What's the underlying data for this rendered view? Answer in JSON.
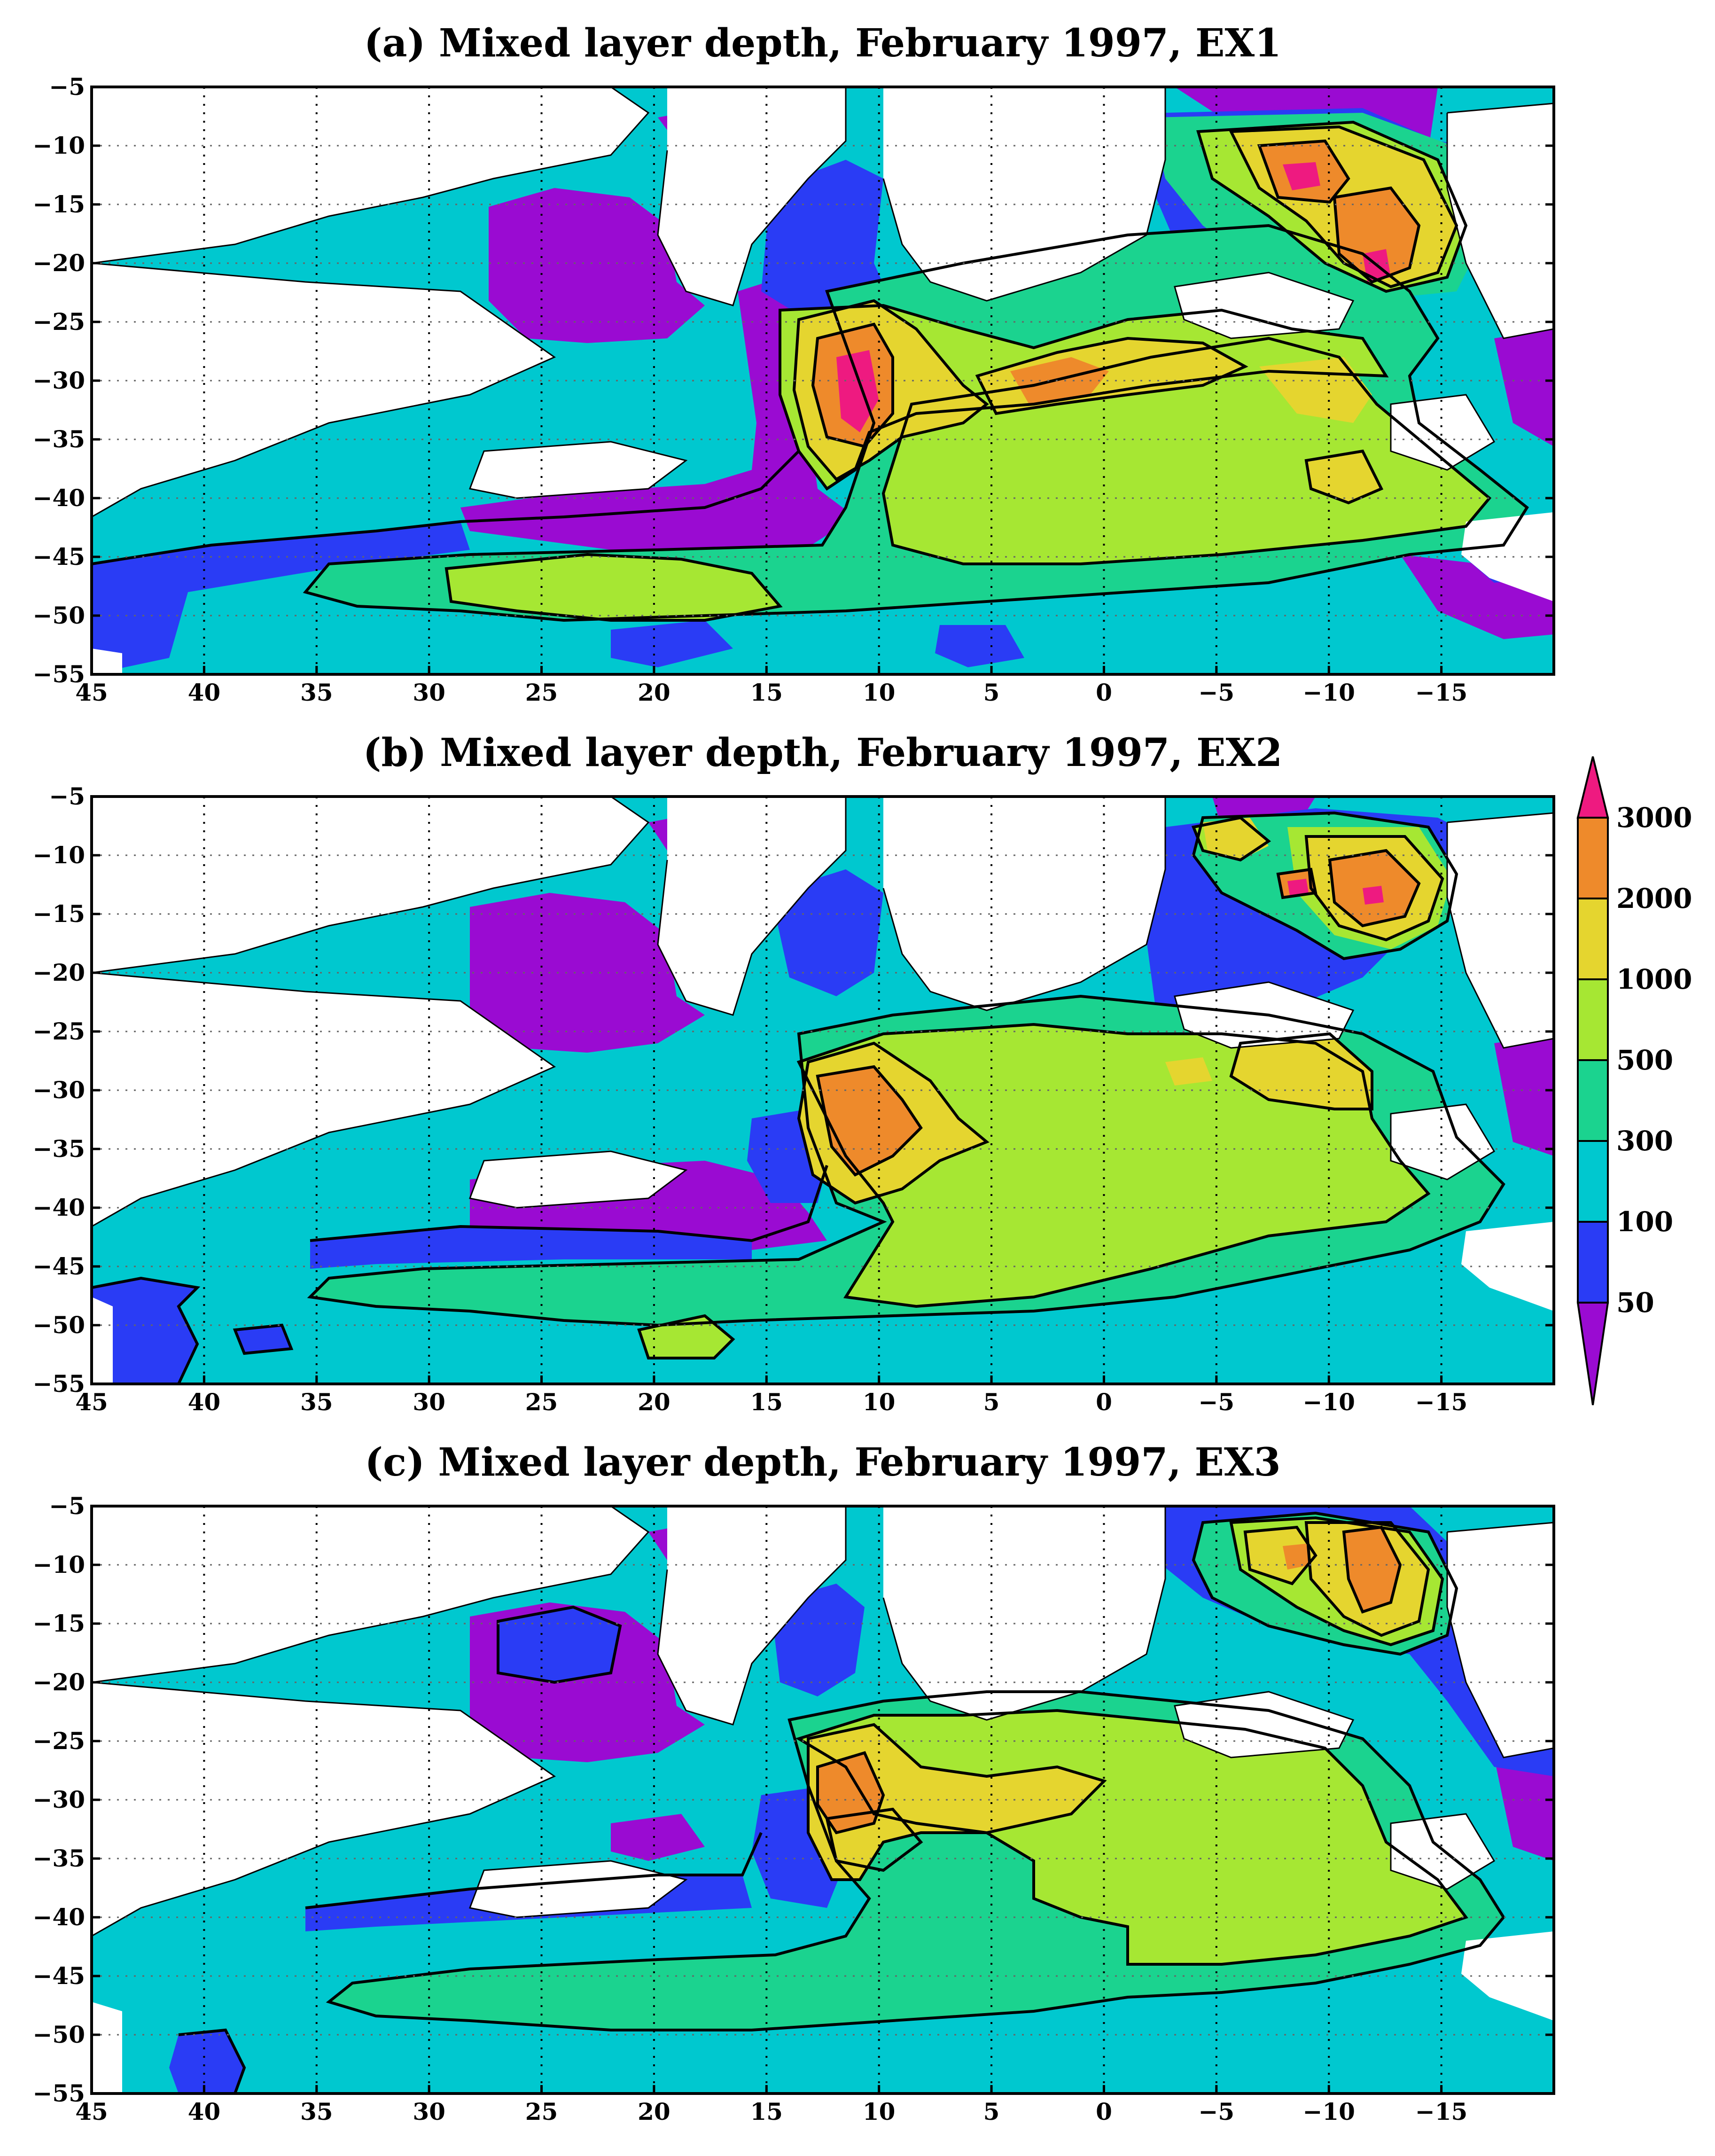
{
  "chart_data": [
    {
      "type": "heatmap",
      "title": "(a) Mixed layer depth, February 1997, EX1",
      "xlabel": "",
      "ylabel": "",
      "xlim": [
        45,
        -20
      ],
      "ylim": [
        -55,
        -5
      ],
      "x_ticks": [
        "45",
        "40",
        "35",
        "30",
        "25",
        "20",
        "15",
        "10",
        "5",
        "0",
        "−5",
        "−10",
        "−15"
      ],
      "y_ticks": [
        "−5",
        "−10",
        "−15",
        "−20",
        "−25",
        "−30",
        "−35",
        "−40",
        "−45",
        "−50",
        "−55"
      ],
      "grid": true,
      "regions": [
        {
          "name": "3000",
          "center": [
            12,
            -31
          ]
        },
        {
          "name": "3000",
          "center": [
            -7,
            -13
          ]
        },
        {
          "name": "3000",
          "center": [
            -11,
            -21
          ]
        },
        {
          "name": "2000",
          "center": [
            12,
            -30
          ]
        },
        {
          "name": "2000",
          "center": [
            -3,
            -30
          ]
        },
        {
          "name": "2000",
          "center": [
            -9,
            -16
          ]
        },
        {
          "name": "1000",
          "center": [
            -10,
            -39
          ]
        },
        {
          "name": "1000",
          "center": [
            -6,
            -30
          ]
        },
        {
          "name": "500",
          "center": [
            -3,
            -40
          ]
        },
        {
          "name": "500",
          "center": [
            20,
            -49
          ]
        }
      ]
    },
    {
      "type": "heatmap",
      "title": "(b) Mixed layer depth, February 1997, EX2",
      "xlabel": "",
      "ylabel": "",
      "xlim": [
        45,
        -20
      ],
      "ylim": [
        -55,
        -5
      ],
      "x_ticks": [
        "45",
        "40",
        "35",
        "30",
        "25",
        "20",
        "15",
        "10",
        "5",
        "0",
        "−5",
        "−10",
        "−15"
      ],
      "y_ticks": [
        "−5",
        "−10",
        "−15",
        "−20",
        "−25",
        "−30",
        "−35",
        "−40",
        "−45",
        "−50",
        "−55"
      ],
      "grid": true,
      "regions": [
        {
          "name": "3000",
          "center": [
            -7,
            -13
          ]
        },
        {
          "name": "3000",
          "center": [
            -11,
            -16
          ]
        },
        {
          "name": "2000",
          "center": [
            11,
            -32
          ]
        },
        {
          "name": "2000",
          "center": [
            -11,
            -16
          ]
        },
        {
          "name": "1000",
          "center": [
            -7,
            -29
          ]
        },
        {
          "name": "1000",
          "center": [
            -7,
            -11
          ]
        },
        {
          "name": "500",
          "center": [
            0,
            -35
          ]
        },
        {
          "name": "500",
          "center": [
            20,
            -51
          ]
        }
      ]
    },
    {
      "type": "heatmap",
      "title": "(c) Mixed layer depth, February 1997, EX3",
      "xlabel": "",
      "ylabel": "",
      "xlim": [
        45,
        -20
      ],
      "ylim": [
        -55,
        -5
      ],
      "x_ticks": [
        "45",
        "40",
        "35",
        "30",
        "25",
        "20",
        "15",
        "10",
        "5",
        "0",
        "−5",
        "−10",
        "−15"
      ],
      "y_ticks": [
        "−5",
        "−10",
        "−15",
        "−20",
        "−25",
        "−30",
        "−35",
        "−40",
        "−45",
        "−50",
        "−55"
      ],
      "grid": true,
      "regions": [
        {
          "name": "2000",
          "center": [
            12,
            -31
          ]
        },
        {
          "name": "2000",
          "center": [
            -10,
            -14
          ]
        },
        {
          "name": "1000",
          "center": [
            8,
            -31
          ]
        },
        {
          "name": "1000",
          "center": [
            -5,
            -14
          ]
        },
        {
          "name": "500",
          "center": [
            -5,
            -40
          ]
        },
        {
          "name": "500",
          "center": [
            -8,
            -47
          ]
        },
        {
          "name": "300",
          "center": [
            10,
            -47
          ]
        }
      ]
    }
  ],
  "colorbar": {
    "labels": [
      "3000",
      "2000",
      "1000",
      "500",
      "300",
      "100",
      "50"
    ],
    "colors": {
      "lt50": "#9a0bd2",
      "50-100": "#2a3cf5",
      "100-300": "#00c8cf",
      "300-500": "#1bd38f",
      "500-1000": "#a6e733",
      "1000-2000": "#e5d52f",
      "2000-3000": "#ee8a2b",
      "gt3000": "#ee1a80"
    }
  },
  "colors": {
    "land": "#ffffff",
    "contour": "#000000",
    "frame": "#000000"
  }
}
